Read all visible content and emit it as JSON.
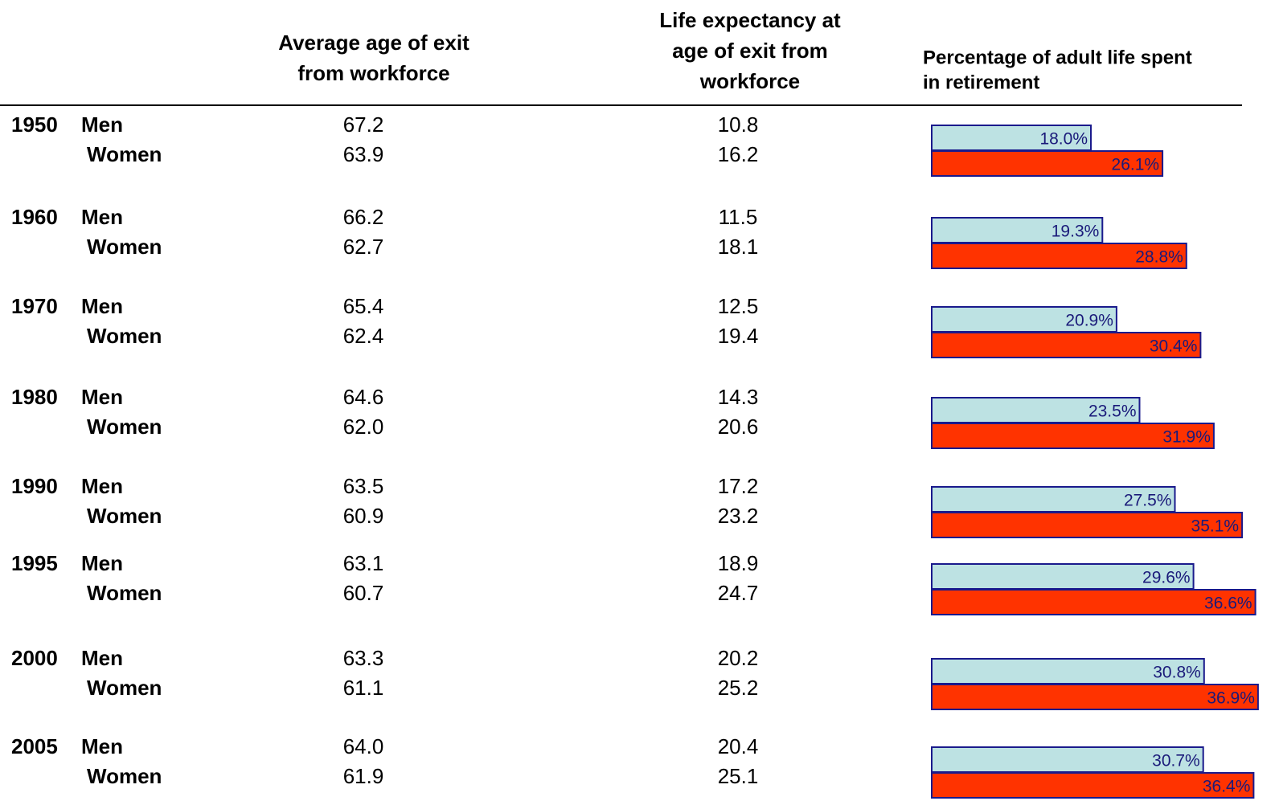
{
  "headers": [
    [
      "Average age of exit",
      "from workforce"
    ],
    [
      "Life expectancy at",
      "age of exit from",
      "workforce"
    ],
    [
      "Percentage of adult life spent",
      "in retirement"
    ]
  ],
  "groups": [
    {
      "year": "1950",
      "rows": [
        {
          "sex": "Men",
          "exit_age": "67.2",
          "life_expectancy": "10.8",
          "retirement_share": 18.0,
          "retirement_label": "18.0%"
        },
        {
          "sex": "Women",
          "exit_age": "63.9",
          "life_expectancy": "16.2",
          "retirement_share": 26.1,
          "retirement_label": "26.1%"
        }
      ]
    },
    {
      "year": "1960",
      "rows": [
        {
          "sex": "Men",
          "exit_age": "66.2",
          "life_expectancy": "11.5",
          "retirement_share": 19.3,
          "retirement_label": "19.3%"
        },
        {
          "sex": "Women",
          "exit_age": "62.7",
          "life_expectancy": "18.1",
          "retirement_share": 28.8,
          "retirement_label": "28.8%"
        }
      ]
    },
    {
      "year": "1970",
      "rows": [
        {
          "sex": "Men",
          "exit_age": "65.4",
          "life_expectancy": "12.5",
          "retirement_share": 20.9,
          "retirement_label": "20.9%"
        },
        {
          "sex": "Women",
          "exit_age": "62.4",
          "life_expectancy": "19.4",
          "retirement_share": 30.4,
          "retirement_label": "30.4%"
        }
      ]
    },
    {
      "year": "1980",
      "rows": [
        {
          "sex": "Men",
          "exit_age": "64.6",
          "life_expectancy": "14.3",
          "retirement_share": 23.5,
          "retirement_label": "23.5%"
        },
        {
          "sex": "Women",
          "exit_age": "62.0",
          "life_expectancy": "20.6",
          "retirement_share": 31.9,
          "retirement_label": "31.9%"
        }
      ]
    },
    {
      "year": "1990",
      "rows": [
        {
          "sex": "Men",
          "exit_age": "63.5",
          "life_expectancy": "17.2",
          "retirement_share": 27.5,
          "retirement_label": "27.5%"
        },
        {
          "sex": "Women",
          "exit_age": "60.9",
          "life_expectancy": "23.2",
          "retirement_share": 35.1,
          "retirement_label": "35.1%"
        }
      ]
    },
    {
      "year": "1995",
      "rows": [
        {
          "sex": "Men",
          "exit_age": "63.1",
          "life_expectancy": "18.9",
          "retirement_share": 29.6,
          "retirement_label": "29.6%"
        },
        {
          "sex": "Women",
          "exit_age": "60.7",
          "life_expectancy": "24.7",
          "retirement_share": 36.6,
          "retirement_label": "36.6%"
        }
      ]
    },
    {
      "year": "2000",
      "rows": [
        {
          "sex": "Men",
          "exit_age": "63.3",
          "life_expectancy": "20.2",
          "retirement_share": 30.8,
          "retirement_label": "30.8%"
        },
        {
          "sex": "Women",
          "exit_age": "61.1",
          "life_expectancy": "25.2",
          "retirement_share": 36.9,
          "retirement_label": "36.9%"
        }
      ]
    },
    {
      "year": "2005",
      "rows": [
        {
          "sex": "Men",
          "exit_age": "64.0",
          "life_expectancy": "20.4",
          "retirement_share": 30.7,
          "retirement_label": "30.7%"
        },
        {
          "sex": "Women",
          "exit_age": "61.9",
          "life_expectancy": "25.1",
          "retirement_share": 36.4,
          "retirement_label": "36.4%"
        }
      ]
    }
  ]
}
